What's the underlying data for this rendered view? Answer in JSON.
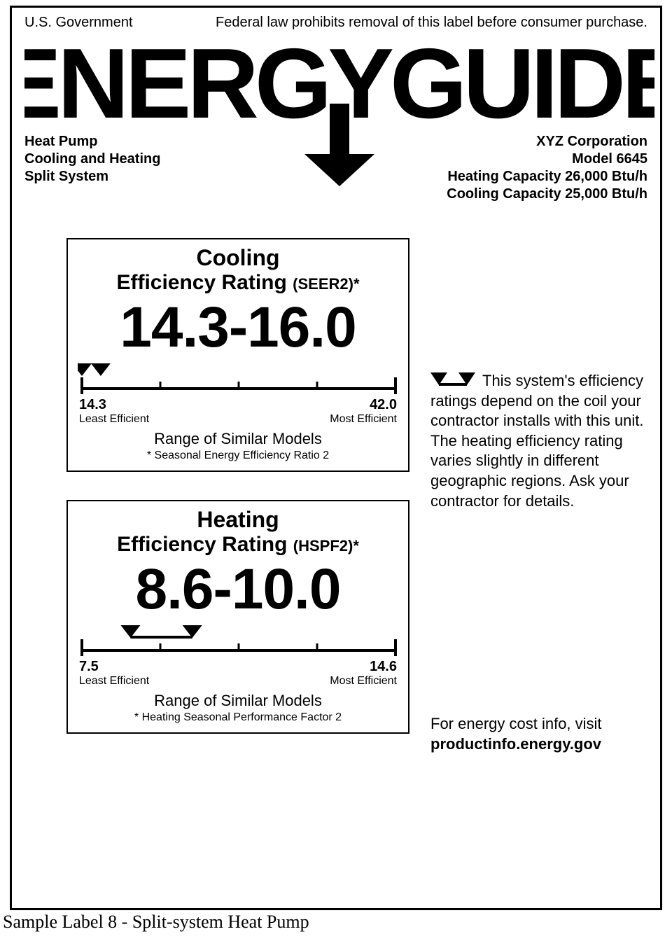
{
  "header": {
    "left": "U.S. Government",
    "right": "Federal law prohibits removal of this label before consumer purchase."
  },
  "logo_text": "ENERGYGUIDE",
  "product": {
    "line1": "Heat Pump",
    "line2": "Cooling and Heating",
    "line3": "Split System"
  },
  "manufacturer": {
    "line1": "XYZ Corporation",
    "line2": "Model 6645",
    "line3": "Heating Capacity 26,000 Btu/h",
    "line4": "Cooling Capacity 25,000 Btu/h"
  },
  "cooling": {
    "title1": "Cooling",
    "title2": "Efficiency Rating ",
    "title2_small": "(SEER2)*",
    "value": "14.3-16.0",
    "scale": {
      "min": 14.3,
      "max": 42.0,
      "min_label": "14.3",
      "max_label": "42.0",
      "least": "Least Efficient",
      "most": "Most Efficient",
      "ticks": 5,
      "marker_low_pct": 0,
      "marker_high_pct": 6,
      "bracket": false
    },
    "range_text": "Range of Similar Models",
    "footnote": "* Seasonal Energy Efficiency Ratio 2"
  },
  "heating": {
    "title1": "Heating",
    "title2": "Efficiency Rating ",
    "title2_small": "(HSPF2)*",
    "value": "8.6-10.0",
    "scale": {
      "min": 7.5,
      "max": 14.6,
      "min_label": "7.5",
      "max_label": "14.6",
      "least": "Least Efficient",
      "most": "Most Efficient",
      "ticks": 5,
      "marker_low_pct": 15.5,
      "marker_high_pct": 35.2,
      "bracket": true
    },
    "range_text": "Range of Similar Models",
    "footnote": "* Heating Seasonal Performance Factor 2"
  },
  "side_note": "This system's efficiency ratings depend on the coil your contractor installs with this unit. The heating efficiency rating varies slightly in different geographic regions. Ask your contractor for details.",
  "energy_link": {
    "text": "For energy cost info, visit",
    "url": "productinfo.energy.gov"
  },
  "caption": "Sample Label 8 - Split-system Heat Pump",
  "colors": {
    "fg": "#000000",
    "bg": "#ffffff"
  }
}
